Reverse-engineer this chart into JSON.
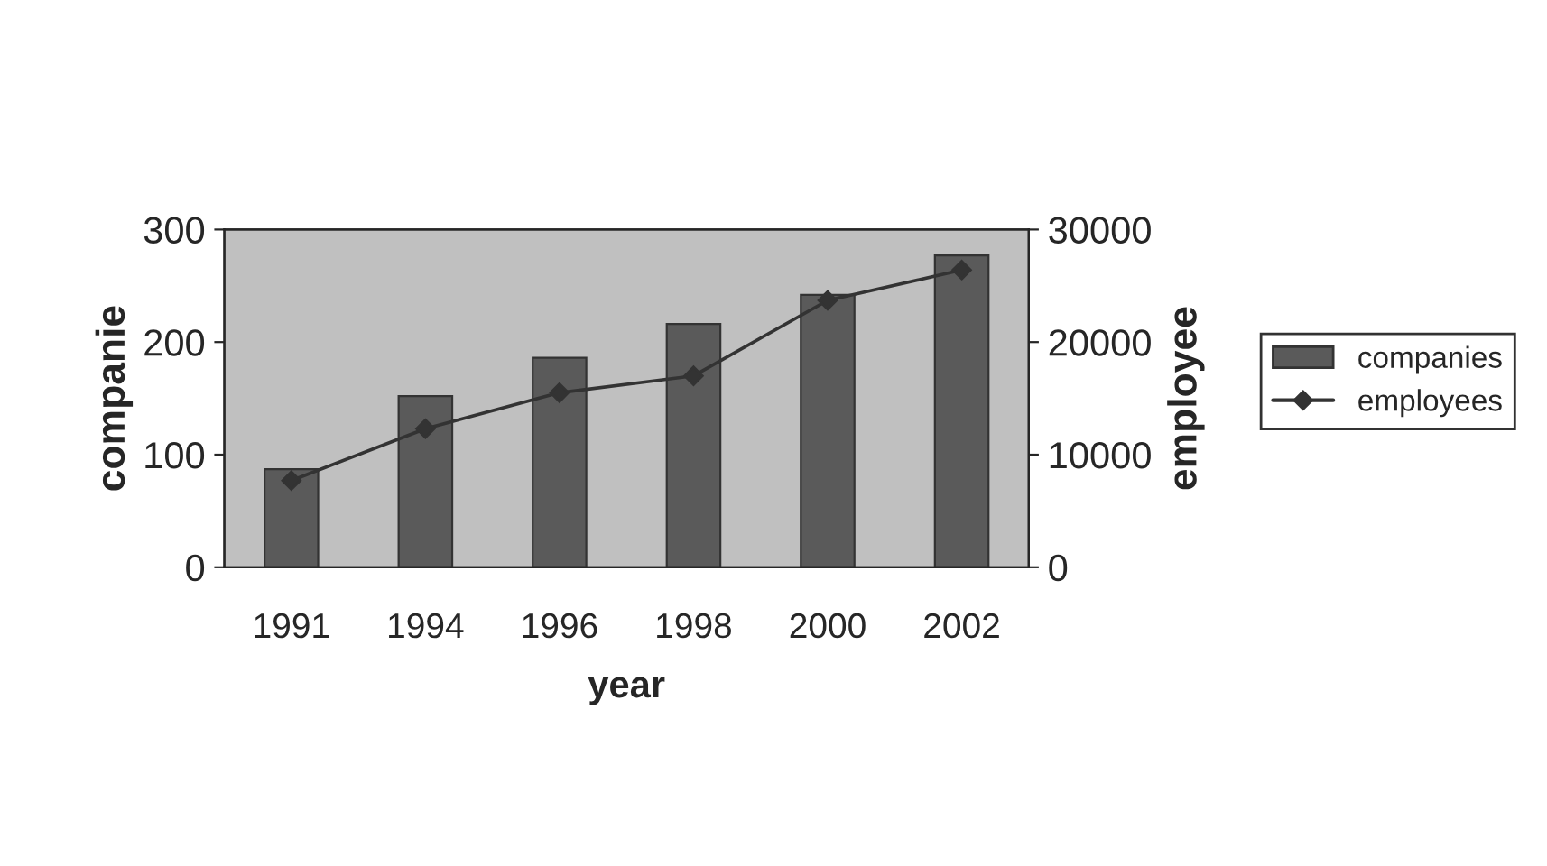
{
  "chart_data": {
    "type": "bar",
    "categories": [
      "1991",
      "1994",
      "1996",
      "1998",
      "2000",
      "2002"
    ],
    "xlabel": "year",
    "ylabel": "companie",
    "y2label": "employee",
    "series": [
      {
        "name": "companies",
        "color": "#5a5a5a",
        "values": [
          87,
          152,
          186,
          216,
          242,
          277
        ]
      },
      {
        "name": "employees",
        "type": "line",
        "axis": "y2",
        "color": "#333333",
        "marker": "diamond",
        "values": [
          7700,
          12300,
          15500,
          17000,
          23700,
          26400
        ]
      }
    ],
    "ylim": [
      0,
      300
    ],
    "yticks": [
      0,
      100,
      200,
      300
    ],
    "y2lim": [
      0,
      30000
    ],
    "y2ticks": [
      0,
      10000,
      20000,
      30000
    ],
    "grid": false,
    "legend": "right"
  }
}
